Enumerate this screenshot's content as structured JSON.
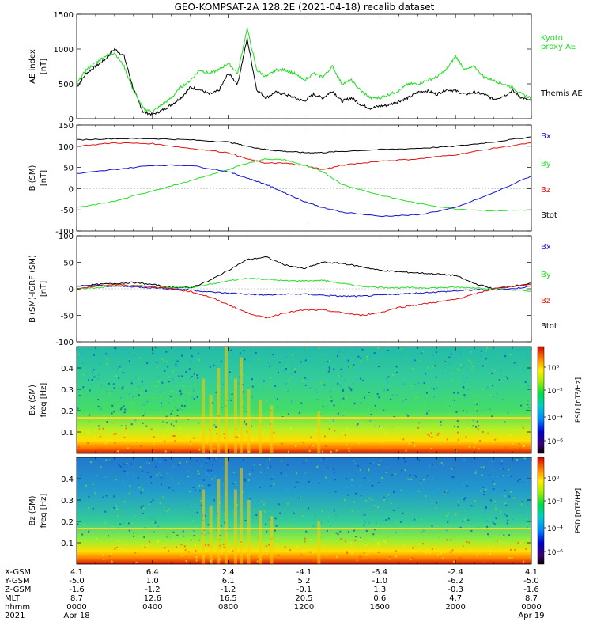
{
  "title": "GEO-KOMPSAT-2A 128.2E (2021-04-18) recalib dataset",
  "colors": {
    "black": "#000000",
    "green": "#22dd22",
    "red": "#dd1111",
    "blue": "#1111cc"
  },
  "chart_data": [
    {
      "id": "ae",
      "type": "line",
      "ylabel_main": "AE index",
      "ylabel_unit": "[nT]",
      "ylim": [
        0,
        1500
      ],
      "yticks": [
        "0",
        "500",
        "1000",
        "1500"
      ],
      "series": [
        {
          "name": "Themis AE",
          "color": "#000000",
          "x": [
            0,
            0.5,
            1,
            1.5,
            2,
            2.5,
            3,
            3.5,
            4,
            4.5,
            5,
            5.5,
            6,
            6.5,
            7,
            7.5,
            8,
            8.5,
            9,
            9.5,
            10,
            10.5,
            11,
            11.5,
            12,
            12.5,
            13,
            13.5,
            14,
            14.5,
            15,
            15.5,
            16,
            16.5,
            17,
            17.5,
            18,
            18.5,
            19,
            19.5,
            20,
            20.5,
            21,
            21.5,
            22,
            22.5,
            23,
            23.5,
            24
          ],
          "y": [
            450,
            650,
            750,
            850,
            1000,
            900,
            420,
            100,
            60,
            120,
            200,
            300,
            450,
            420,
            350,
            400,
            650,
            500,
            1150,
            420,
            300,
            380,
            350,
            300,
            250,
            350,
            300,
            400,
            250,
            300,
            200,
            150,
            180,
            200,
            250,
            300,
            380,
            400,
            350,
            420,
            400,
            350,
            380,
            350,
            280,
            320,
            400,
            300,
            250
          ]
        },
        {
          "name": "Kyoto proxy AE",
          "color": "#22dd22",
          "x": [
            0,
            0.5,
            1,
            1.5,
            2,
            2.5,
            3,
            3.5,
            4,
            4.5,
            5,
            5.5,
            6,
            6.5,
            7,
            7.5,
            8,
            8.5,
            9,
            9.5,
            10,
            10.5,
            11,
            11.5,
            12,
            12.5,
            13,
            13.5,
            14,
            14.5,
            15,
            15.5,
            16,
            16.5,
            17,
            17.5,
            18,
            18.5,
            19,
            19.5,
            20,
            20.5,
            21,
            21.5,
            22,
            22.5,
            23,
            23.5,
            24
          ],
          "y": [
            500,
            700,
            800,
            900,
            950,
            750,
            400,
            150,
            100,
            200,
            300,
            450,
            550,
            700,
            650,
            700,
            800,
            650,
            1300,
            700,
            600,
            700,
            700,
            650,
            550,
            650,
            600,
            750,
            500,
            550,
            400,
            300,
            300,
            350,
            400,
            500,
            500,
            550,
            600,
            700,
            900,
            700,
            750,
            600,
            550,
            500,
            450,
            350,
            300
          ]
        }
      ]
    },
    {
      "id": "b",
      "type": "line",
      "ylabel_main": "B (SM)",
      "ylabel_unit": "[nT]",
      "ylim": [
        -100,
        150
      ],
      "yticks": [
        "-100",
        "-50",
        "0",
        "50",
        "100",
        "150"
      ],
      "series": [
        {
          "name": "Btot",
          "color": "#000000",
          "x": [
            0,
            2,
            4,
            6,
            8,
            9,
            10,
            11,
            12,
            13,
            14,
            16,
            18,
            20,
            22,
            24
          ],
          "y": [
            115,
            118,
            118,
            115,
            110,
            100,
            92,
            88,
            85,
            85,
            88,
            92,
            95,
            100,
            110,
            122
          ]
        },
        {
          "name": "Bz",
          "color": "#dd1111",
          "x": [
            0,
            2,
            4,
            6,
            8,
            9,
            10,
            11,
            12,
            13,
            14,
            16,
            18,
            20,
            22,
            24
          ],
          "y": [
            100,
            108,
            106,
            95,
            85,
            70,
            60,
            60,
            55,
            45,
            55,
            65,
            70,
            80,
            95,
            108
          ]
        },
        {
          "name": "By",
          "color": "#22dd22",
          "x": [
            0,
            2,
            4,
            6,
            8,
            9,
            10,
            11,
            12,
            13,
            14,
            16,
            18,
            20,
            22,
            24
          ],
          "y": [
            -45,
            -30,
            -5,
            18,
            45,
            60,
            70,
            68,
            55,
            40,
            10,
            -15,
            -35,
            -48,
            -52,
            -50
          ]
        },
        {
          "name": "Bx",
          "color": "#1111cc",
          "x": [
            0,
            2,
            4,
            6,
            8,
            9,
            10,
            11,
            12,
            13,
            14,
            16,
            18,
            20,
            22,
            24
          ],
          "y": [
            35,
            45,
            55,
            55,
            40,
            25,
            10,
            -10,
            -30,
            -45,
            -55,
            -65,
            -62,
            -45,
            -10,
            30
          ]
        }
      ]
    },
    {
      "id": "db",
      "type": "line",
      "ylabel_main": "B (SM)-IGRF (SM)",
      "ylabel_unit": "[nT]",
      "ylim": [
        -100,
        100
      ],
      "yticks": [
        "-100",
        "-50",
        "0",
        "50",
        "100"
      ],
      "series": [
        {
          "name": "Btot",
          "color": "#000000",
          "x": [
            0,
            1,
            2,
            3,
            4,
            5,
            6,
            7,
            8,
            9,
            10,
            11,
            12,
            13,
            14,
            15,
            16,
            17,
            18,
            19,
            20,
            21,
            22,
            23,
            24
          ],
          "y": [
            5,
            8,
            10,
            12,
            8,
            3,
            2,
            15,
            35,
            55,
            60,
            45,
            38,
            50,
            48,
            42,
            35,
            32,
            30,
            28,
            25,
            10,
            0,
            5,
            10
          ]
        },
        {
          "name": "By",
          "color": "#22dd22",
          "x": [
            0,
            1,
            2,
            3,
            4,
            5,
            6,
            7,
            8,
            9,
            10,
            11,
            12,
            13,
            14,
            15,
            16,
            17,
            18,
            19,
            20,
            21,
            22,
            23,
            24
          ],
          "y": [
            0,
            2,
            5,
            6,
            5,
            3,
            2,
            8,
            15,
            20,
            18,
            15,
            15,
            16,
            10,
            5,
            3,
            2,
            2,
            2,
            3,
            2,
            0,
            -2,
            -5
          ]
        },
        {
          "name": "Bx",
          "color": "#1111cc",
          "x": [
            0,
            1,
            2,
            3,
            4,
            5,
            6,
            7,
            8,
            9,
            10,
            11,
            12,
            13,
            14,
            15,
            16,
            17,
            18,
            19,
            20,
            21,
            22,
            23,
            24
          ],
          "y": [
            5,
            6,
            5,
            4,
            2,
            0,
            -2,
            -6,
            -8,
            -10,
            -12,
            -10,
            -10,
            -12,
            -14,
            -14,
            -12,
            -10,
            -8,
            -6,
            -4,
            -2,
            -2,
            0,
            5
          ]
        },
        {
          "name": "Bz",
          "color": "#dd1111",
          "x": [
            0,
            1,
            2,
            3,
            4,
            5,
            6,
            7,
            8,
            9,
            10,
            11,
            12,
            13,
            14,
            15,
            16,
            17,
            18,
            19,
            20,
            21,
            22,
            23,
            24
          ],
          "y": [
            0,
            5,
            8,
            6,
            4,
            0,
            -5,
            -15,
            -30,
            -45,
            -55,
            -45,
            -40,
            -40,
            -45,
            -50,
            -45,
            -35,
            -30,
            -25,
            -20,
            -10,
            0,
            5,
            8
          ]
        }
      ]
    },
    {
      "id": "bx_spec",
      "type": "heatmap",
      "ylabel_main": "Bx (SM)",
      "ylabel_unit": "freq [Hz]",
      "ylim": [
        0,
        0.5
      ],
      "yticks": [
        "0.1",
        "0.2",
        "0.3",
        "0.4"
      ],
      "colorbar_label": "PSD [nT²/Hz]",
      "colorbar_ticks": [
        "10⁰",
        "10⁻²",
        "10⁻⁴",
        "10⁻⁶"
      ]
    },
    {
      "id": "bz_spec",
      "type": "heatmap",
      "ylabel_main": "Bz (SM)",
      "ylabel_unit": "freq [Hz]",
      "ylim": [
        0,
        0.5
      ],
      "yticks": [
        "0.1",
        "0.2",
        "0.3",
        "0.4"
      ],
      "colorbar_label": "PSD [nT²/Hz]",
      "colorbar_ticks": [
        "10⁰",
        "10⁻²",
        "10⁻⁴",
        "10⁻⁶"
      ]
    }
  ],
  "legends": {
    "ae": [
      {
        "text": "Kyoto",
        "color": "#22dd22"
      },
      {
        "text": "proxy AE",
        "color": "#22dd22"
      },
      {
        "text": "Themis AE",
        "color": "#000000"
      }
    ],
    "b": [
      {
        "text": "Bx",
        "color": "#1111cc"
      },
      {
        "text": "By",
        "color": "#22dd22"
      },
      {
        "text": "Bz",
        "color": "#dd1111"
      },
      {
        "text": "Btot",
        "color": "#000000"
      }
    ],
    "db": [
      {
        "text": "Bx",
        "color": "#1111cc"
      },
      {
        "text": "By",
        "color": "#22dd22"
      },
      {
        "text": "Bz",
        "color": "#dd1111"
      },
      {
        "text": "Btot",
        "color": "#000000"
      }
    ]
  },
  "xaxis": {
    "row_labels": [
      "X-GSM",
      "Y-GSM",
      "Z-GSM",
      "MLT",
      "hhmm",
      "2021"
    ],
    "columns": [
      [
        "4.1",
        "-5.0",
        "-1.6",
        "8.7",
        "0000",
        "Apr 18"
      ],
      [
        "6.4",
        "1.0",
        "-1.2",
        "12.6",
        "0400",
        ""
      ],
      [
        "2.4",
        "6.1",
        "-1.2",
        "16.5",
        "0800",
        ""
      ],
      [
        "-4.1",
        "5.2",
        "-0.1",
        "20.5",
        "1200",
        ""
      ],
      [
        "-6.4",
        "-1.0",
        "1.3",
        "0.6",
        "1600",
        ""
      ],
      [
        "-2.4",
        "-6.2",
        "-0.3",
        "4.7",
        "2000",
        ""
      ],
      [
        "4.1",
        "-5.0",
        "-1.6",
        "8.7",
        "0000",
        "Apr 19"
      ]
    ]
  }
}
